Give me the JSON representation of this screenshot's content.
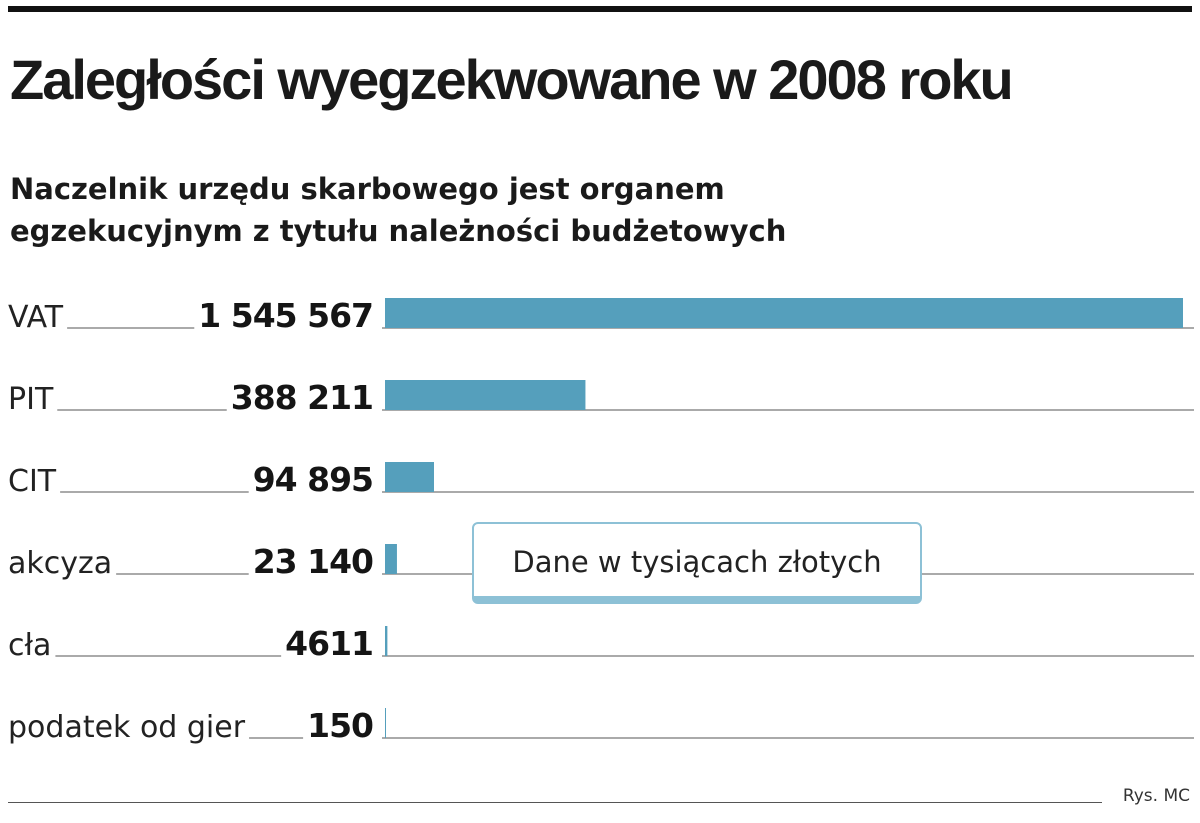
{
  "header": {
    "title": "Zaległości wyegzekwowane w 2008 roku",
    "subtitle": "Naczelnik urzędu skarbowego jest organem egzekucyjnym z tytułu należności budżetowych"
  },
  "note": "Dane w tysiącach złotych",
  "credit": "Rys. MC",
  "colors": {
    "bar": "#559fbc",
    "rule": "#555555",
    "note_border": "#8dc1d6"
  },
  "chart_data": {
    "type": "bar",
    "orientation": "horizontal",
    "categories": [
      "VAT",
      "PIT",
      "CIT",
      "akcyza",
      "cła",
      "podatek od gier"
    ],
    "values": [
      1545567,
      388211,
      94895,
      23140,
      4611,
      150
    ],
    "value_labels": [
      "1 545 567",
      "388 211",
      "94 895",
      "23 140",
      "4611",
      "150"
    ],
    "xlim": [
      0,
      1545567
    ],
    "grid": false,
    "legend": "none"
  }
}
